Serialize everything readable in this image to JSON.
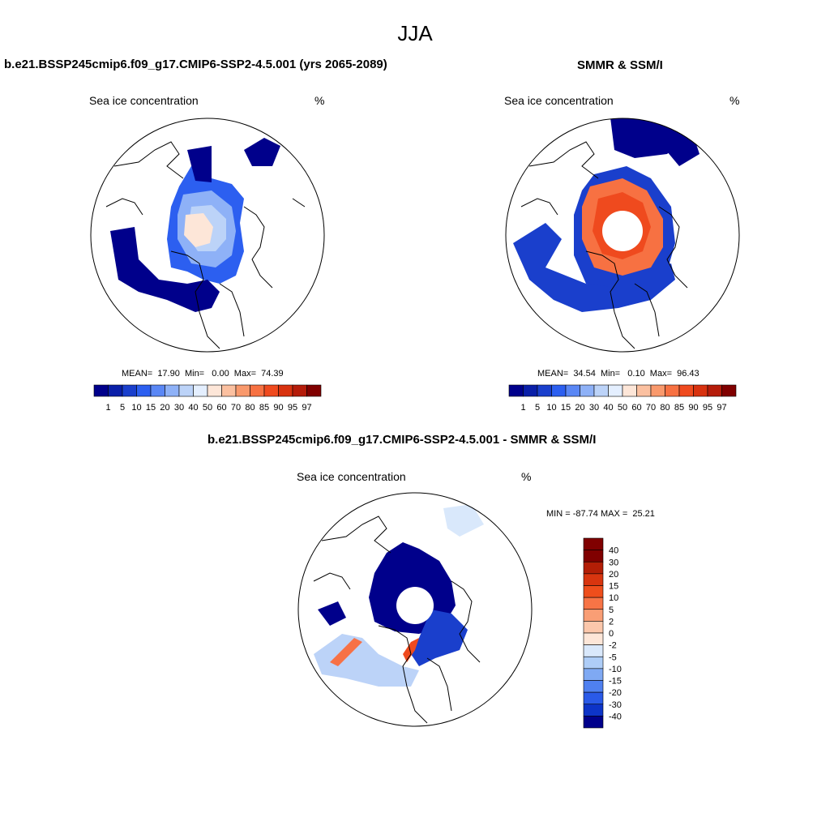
{
  "figure": {
    "title": "JJA"
  },
  "colors": {
    "seq_colorbar": [
      "#00008b",
      "#0a1fa8",
      "#1a3fcc",
      "#2c5ff0",
      "#5a87f5",
      "#8eb1f7",
      "#bcd3f8",
      "#e4efff",
      "#fde6d8",
      "#fbc0a0",
      "#f9996c",
      "#f77142",
      "#ef4a1e",
      "#d8320f",
      "#b51c0a",
      "#800000"
    ],
    "diff_colorbar": [
      "#800000",
      "#b31e06",
      "#d8350f",
      "#ee4e1c",
      "#f77446",
      "#f99e75",
      "#fbc7ab",
      "#fde6d8",
      "#d9e8fb",
      "#aecdf7",
      "#7fa9f3",
      "#4f80f0",
      "#2a5ae8",
      "#0d34c8",
      "#00008b"
    ]
  },
  "panels": {
    "model": {
      "title": "b.e21.BSSP245cmip6.f09_g17.CMIP6-SSP2-4.5.001 (yrs 2065-2089)",
      "variable": "Sea ice concentration",
      "units": "%",
      "stats": "MEAN=  17.90  Min=   0.00  Max=  74.39"
    },
    "obs": {
      "title": "SMMR & SSM/I",
      "variable": "Sea ice concentration",
      "units": "%",
      "stats": "MEAN=  34.54  Min=   0.10  Max=  96.43"
    },
    "diff": {
      "title": "b.e21.BSSP245cmip6.f09_g17.CMIP6-SSP2-4.5.001 - SMMR & SSM/I",
      "variable": "Sea ice concentration",
      "units": "%",
      "stats": "MIN = -87.74 MAX =  25.21"
    }
  },
  "colorbar_labels": [
    "1",
    "5",
    "10",
    "15",
    "20",
    "30",
    "40",
    "50",
    "60",
    "70",
    "80",
    "85",
    "90",
    "95",
    "97"
  ],
  "diff_colorbar_labels": [
    "40",
    "30",
    "20",
    "15",
    "10",
    "5",
    "2",
    "0",
    "-2",
    "-5",
    "-10",
    "-15",
    "-20",
    "-30",
    "-40"
  ]
}
